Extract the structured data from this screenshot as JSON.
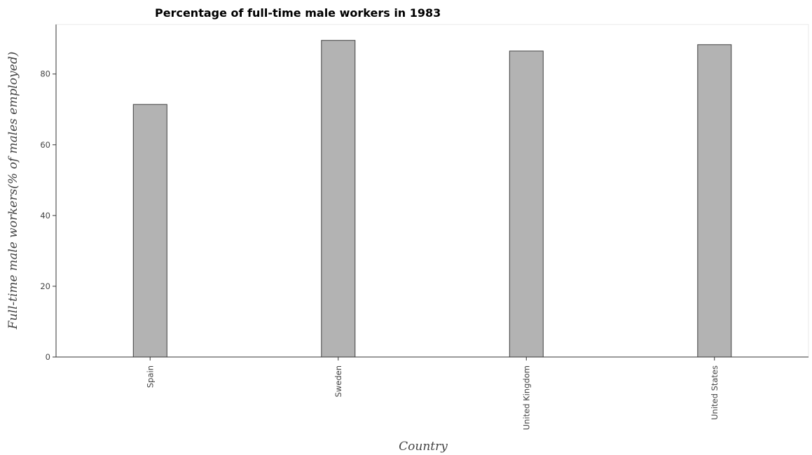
{
  "chart_data": {
    "type": "bar",
    "title": "Percentage of full-time male workers in 1983",
    "xlabel": "Country",
    "ylabel": "Full-time male workers(% of males employed)",
    "categories": [
      "Spain",
      "Sweden",
      "United Kingdom",
      "United States"
    ],
    "values": [
      71.4,
      89.5,
      86.5,
      88.3
    ],
    "ylim": [
      0,
      94
    ],
    "yticks": [
      0,
      20,
      40,
      60,
      80
    ],
    "grid": false,
    "bar_color": "#b3b3b3",
    "bar_edge_color": "#404040"
  }
}
